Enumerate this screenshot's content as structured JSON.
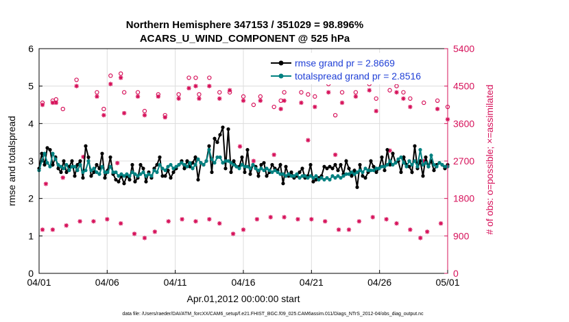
{
  "chart_data": {
    "type": "line",
    "title": "Northern Hemisphere 347153 / 351029 = 98.896%",
    "subtitle": "ACARS_U_WIND_COMPONENT @ 525 hPa",
    "xlabel": "Apr.01,2012 00:00:00 start",
    "ylabel_left": "rmse and totalspread",
    "ylabel_right": "# of obs: o=possible; ×=assimilated",
    "x_ticks": [
      "04/01",
      "04/06",
      "04/11",
      "04/16",
      "04/21",
      "04/26",
      "05/01"
    ],
    "y_left_ticks": [
      "0",
      "1",
      "2",
      "3",
      "4",
      "5",
      "6"
    ],
    "y_right_ticks": [
      "0",
      "900",
      "1800",
      "2700",
      "3600",
      "4500",
      "5400"
    ],
    "ylim_left": [
      0,
      6
    ],
    "ylim_right": [
      0,
      5400
    ],
    "xlim_days": [
      0,
      30
    ],
    "footnote": "data file: /Users/raeder/DAI/ATM_forcXX/CAM6_setup/f.e21.FHIST_BGC.f09_025.CAM6assim.011/Diags_NTrS_2012-04/obs_diag_output.nc",
    "colors": {
      "rmse": "#000000",
      "spread": "#008080",
      "obs": "#d6115a",
      "legend_text": "#1f3fd6"
    },
    "series": [
      {
        "name": "rmse",
        "legend": "rmse grand pr = 2.8669",
        "values": [
          2.8,
          3.2,
          2.9,
          3.35,
          3.3,
          2.9,
          3.1,
          2.8,
          2.7,
          3.0,
          2.7,
          2.85,
          3.0,
          2.6,
          2.9,
          3.0,
          2.55,
          3.4,
          3.1,
          2.6,
          2.7,
          2.9,
          2.8,
          3.2,
          2.55,
          2.75,
          3.1,
          2.65,
          2.5,
          2.45,
          2.6,
          2.4,
          2.6,
          2.5,
          2.9,
          2.45,
          2.55,
          2.9,
          2.8,
          2.45,
          2.7,
          2.55,
          2.8,
          2.9,
          3.1,
          2.6,
          2.6,
          2.75,
          2.55,
          2.7,
          2.8,
          2.9,
          3.0,
          2.8,
          3.0,
          2.85,
          2.95,
          3.1,
          2.5,
          2.95,
          2.9,
          3.0,
          3.4,
          2.7,
          3.6,
          3.5,
          3.7,
          3.9,
          2.8,
          3.85,
          2.7,
          3.0,
          2.85,
          2.85,
          3.1,
          2.7,
          3.3,
          2.65,
          2.9,
          2.85,
          2.6,
          2.9,
          2.95,
          2.6,
          2.7,
          2.9,
          2.8,
          2.75,
          2.9,
          2.4,
          2.85,
          2.6,
          2.7,
          2.55,
          2.6,
          2.7,
          2.8,
          2.55,
          2.6,
          2.9,
          2.45,
          2.5,
          2.55,
          2.6,
          2.85,
          2.8,
          2.85,
          2.8,
          2.9,
          2.75,
          2.9,
          2.65,
          3.0,
          2.8,
          2.6,
          2.75,
          2.3,
          2.9,
          2.6,
          2.55,
          2.7,
          3.0,
          2.85,
          2.7,
          2.8,
          3.1,
          2.75,
          3.3,
          2.9,
          3.2,
          2.95,
          3.0,
          2.7,
          3.1,
          2.9,
          2.85,
          2.7,
          3.4,
          2.8,
          3.0,
          2.6,
          3.1,
          2.85,
          3.0,
          2.75,
          2.9,
          2.95,
          2.9,
          2.8,
          2.9
        ]
      },
      {
        "name": "totalspread",
        "legend": "totalspread grand pr = 2.8516",
        "values": [
          2.75,
          3.0,
          3.2,
          2.95,
          2.85,
          3.2,
          3.05,
          2.9,
          2.85,
          2.8,
          2.9,
          2.75,
          2.85,
          2.85,
          2.75,
          2.9,
          2.7,
          2.75,
          3.0,
          2.75,
          2.8,
          2.7,
          2.65,
          2.85,
          2.7,
          2.7,
          2.85,
          2.7,
          2.7,
          2.6,
          2.65,
          2.6,
          2.65,
          2.6,
          2.7,
          2.65,
          2.6,
          2.65,
          2.7,
          2.6,
          2.65,
          2.6,
          2.75,
          2.7,
          2.9,
          2.8,
          2.75,
          2.85,
          2.9,
          2.8,
          2.85,
          2.9,
          2.95,
          2.9,
          2.85,
          2.95,
          2.8,
          2.9,
          3.05,
          2.95,
          2.9,
          3.0,
          3.3,
          3.05,
          2.95,
          3.1,
          3.1,
          2.95,
          3.0,
          3.0,
          2.95,
          2.9,
          2.85,
          2.8,
          2.9,
          2.85,
          2.85,
          2.8,
          2.9,
          2.8,
          2.75,
          2.8,
          2.75,
          2.8,
          2.75,
          2.7,
          2.75,
          2.7,
          2.65,
          2.65,
          2.6,
          2.65,
          2.6,
          2.6,
          2.65,
          2.55,
          2.6,
          2.6,
          2.55,
          2.6,
          2.55,
          2.6,
          2.5,
          2.55,
          2.5,
          2.55,
          2.5,
          2.6,
          2.55,
          2.6,
          2.55,
          2.6,
          2.65,
          2.65,
          2.7,
          2.65,
          2.7,
          2.75,
          2.7,
          2.8,
          2.75,
          2.75,
          2.75,
          2.8,
          2.8,
          2.85,
          2.85,
          2.9,
          3.0,
          2.9,
          2.95,
          3.05,
          3.1,
          2.95,
          2.85,
          3.0,
          2.9,
          3.0,
          2.85,
          3.3,
          2.9,
          2.95,
          2.85,
          3.15,
          2.9,
          2.85,
          2.95,
          2.9,
          2.85,
          2.85
        ]
      },
      {
        "name": "obs_possible",
        "axis": "right",
        "points": [
          [
            0.25,
            4100
          ],
          [
            1.0,
            4150
          ],
          [
            1.25,
            4180
          ],
          [
            1.75,
            3950
          ],
          [
            2.75,
            4650
          ],
          [
            4.25,
            4350
          ],
          [
            4.75,
            3950
          ],
          [
            5.25,
            4750
          ],
          [
            6.0,
            4800
          ],
          [
            6.25,
            4350
          ],
          [
            7.25,
            4350
          ],
          [
            7.75,
            3900
          ],
          [
            8.75,
            4300
          ],
          [
            9.25,
            3800
          ],
          [
            10.25,
            4300
          ],
          [
            11.0,
            4700
          ],
          [
            11.5,
            4700
          ],
          [
            11.75,
            4300
          ],
          [
            12.5,
            4700
          ],
          [
            13.25,
            4350
          ],
          [
            14.0,
            4350
          ],
          [
            15.0,
            4250
          ],
          [
            15.75,
            4050
          ],
          [
            16.25,
            4250
          ],
          [
            17.25,
            4000
          ],
          [
            17.75,
            4150
          ],
          [
            18.0,
            4350
          ],
          [
            19.25,
            4350
          ],
          [
            19.75,
            4300
          ],
          [
            20.25,
            4250
          ],
          [
            21.25,
            4550
          ],
          [
            21.75,
            3800
          ],
          [
            22.25,
            4350
          ],
          [
            23.25,
            4350
          ],
          [
            24.25,
            4550
          ],
          [
            24.75,
            4200
          ],
          [
            25.75,
            4400
          ],
          [
            26.25,
            4500
          ],
          [
            26.75,
            4350
          ],
          [
            27.25,
            4200
          ],
          [
            28.25,
            4100
          ],
          [
            29.25,
            4150
          ],
          [
            30.0,
            4000
          ]
        ]
      },
      {
        "name": "obs_assimilated",
        "axis": "right",
        "points": [
          [
            0.25,
            4050
          ],
          [
            0.5,
            2150
          ],
          [
            1.0,
            4100
          ],
          [
            1.25,
            4100
          ],
          [
            1.75,
            2300
          ],
          [
            2.75,
            4500
          ],
          [
            3.25,
            2800
          ],
          [
            4.25,
            4250
          ],
          [
            4.75,
            3800
          ],
          [
            5.25,
            4550
          ],
          [
            5.75,
            2650
          ],
          [
            6.0,
            4700
          ],
          [
            6.25,
            3850
          ],
          [
            7.25,
            4250
          ],
          [
            7.75,
            3800
          ],
          [
            8.75,
            4250
          ],
          [
            9.25,
            3750
          ],
          [
            10.25,
            4200
          ],
          [
            11.0,
            4450
          ],
          [
            11.5,
            4500
          ],
          [
            11.75,
            4200
          ],
          [
            12.5,
            4500
          ],
          [
            13.25,
            4200
          ],
          [
            14.0,
            4400
          ],
          [
            14.75,
            3050
          ],
          [
            15.0,
            4150
          ],
          [
            15.75,
            2700
          ],
          [
            16.25,
            4150
          ],
          [
            17.25,
            2850
          ],
          [
            17.75,
            3950
          ],
          [
            18.0,
            4150
          ],
          [
            19.25,
            4100
          ],
          [
            19.75,
            3200
          ],
          [
            20.25,
            4000
          ],
          [
            21.25,
            4350
          ],
          [
            21.75,
            2850
          ],
          [
            22.25,
            4100
          ],
          [
            23.25,
            4250
          ],
          [
            24.25,
            4400
          ],
          [
            24.75,
            3900
          ],
          [
            25.75,
            2950
          ],
          [
            26.25,
            4350
          ],
          [
            26.75,
            4200
          ],
          [
            27.25,
            4000
          ],
          [
            28.25,
            2700
          ],
          [
            29.25,
            3950
          ],
          [
            30.0,
            3700
          ],
          [
            0.25,
            1050
          ],
          [
            1.0,
            1050
          ],
          [
            2.0,
            1150
          ],
          [
            3.0,
            1250
          ],
          [
            4.0,
            1250
          ],
          [
            5.0,
            1300
          ],
          [
            6.0,
            1200
          ],
          [
            7.0,
            950
          ],
          [
            7.75,
            850
          ],
          [
            8.5,
            1000
          ],
          [
            9.5,
            1250
          ],
          [
            10.5,
            1300
          ],
          [
            11.5,
            1250
          ],
          [
            12.5,
            1300
          ],
          [
            13.25,
            1200
          ],
          [
            14.25,
            950
          ],
          [
            15.0,
            1050
          ],
          [
            16.0,
            1300
          ],
          [
            17.0,
            1350
          ],
          [
            18.0,
            1350
          ],
          [
            19.0,
            1300
          ],
          [
            20.0,
            1300
          ],
          [
            21.0,
            1250
          ],
          [
            22.0,
            1050
          ],
          [
            22.75,
            1050
          ],
          [
            23.5,
            1250
          ],
          [
            24.5,
            1350
          ],
          [
            25.5,
            1300
          ],
          [
            26.25,
            1200
          ],
          [
            27.25,
            1050
          ],
          [
            28.0,
            850
          ],
          [
            28.5,
            1000
          ],
          [
            29.5,
            1200
          ]
        ]
      }
    ]
  }
}
